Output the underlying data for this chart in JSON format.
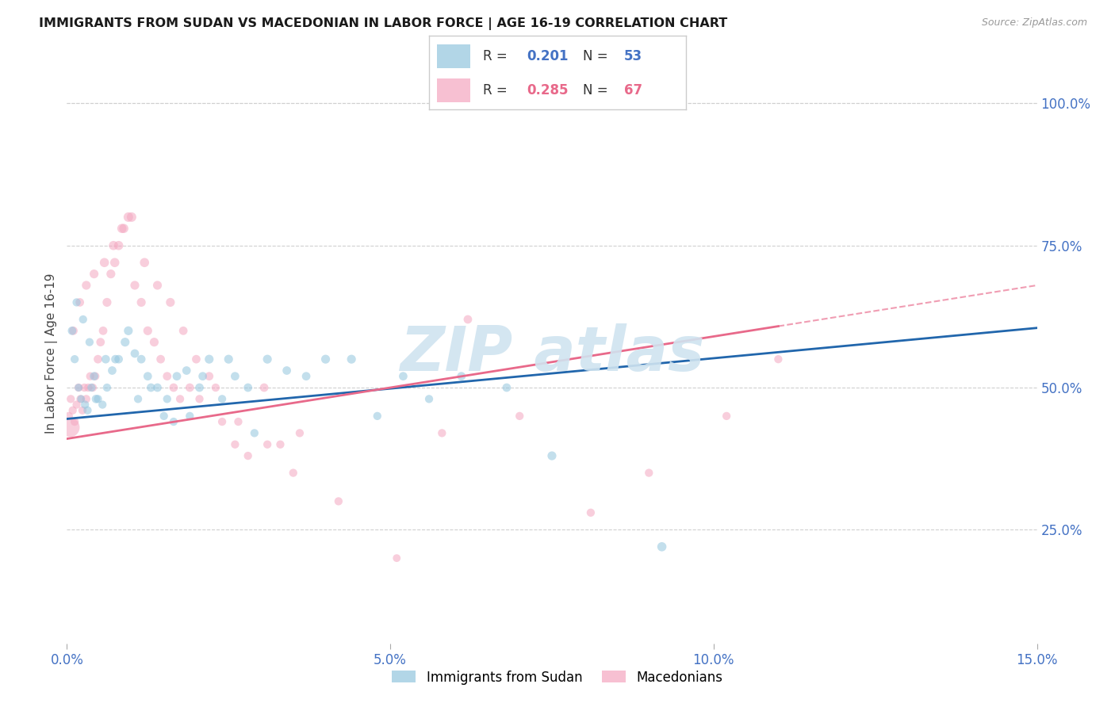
{
  "title": "IMMIGRANTS FROM SUDAN VS MACEDONIAN IN LABOR FORCE | AGE 16-19 CORRELATION CHART",
  "source": "Source: ZipAtlas.com",
  "ylabel": "In Labor Force | Age 16-19",
  "xlabel_vals": [
    0.0,
    5.0,
    10.0,
    15.0
  ],
  "ylabel_vals_right": [
    25.0,
    50.0,
    75.0,
    100.0
  ],
  "xlim": [
    0.0,
    15.0
  ],
  "ylim": [
    5.0,
    107.0
  ],
  "legend1_r": "0.201",
  "legend1_n": "53",
  "legend2_r": "0.285",
  "legend2_n": "67",
  "color_blue": "#92c5de",
  "color_pink": "#f4a6c0",
  "color_line_blue": "#2166ac",
  "color_line_pink": "#e8698a",
  "color_axis": "#4472c4",
  "color_watermark": "#d0e4f0",
  "sudan_line_x0": 0.0,
  "sudan_line_y0": 44.5,
  "sudan_line_x1": 15.0,
  "sudan_line_y1": 60.5,
  "macd_line_x0": 0.0,
  "macd_line_y0": 41.0,
  "macd_line_x1": 15.0,
  "macd_line_y1": 68.0,
  "macd_solid_end": 11.0,
  "sudan_x": [
    0.08,
    0.12,
    0.18,
    0.22,
    0.28,
    0.32,
    0.38,
    0.42,
    0.48,
    0.55,
    0.62,
    0.7,
    0.8,
    0.9,
    1.05,
    1.15,
    1.25,
    1.4,
    1.55,
    1.7,
    1.85,
    2.05,
    2.2,
    2.4,
    2.6,
    2.8,
    3.1,
    3.4,
    3.7,
    4.0,
    4.4,
    4.8,
    5.2,
    5.6,
    6.1,
    6.8,
    9.2,
    0.15,
    0.25,
    0.35,
    0.45,
    0.6,
    0.75,
    0.95,
    1.1,
    1.3,
    1.5,
    1.65,
    1.9,
    2.1,
    2.5,
    2.9,
    7.5
  ],
  "sudan_y": [
    60,
    55,
    50,
    48,
    47,
    46,
    50,
    52,
    48,
    47,
    50,
    53,
    55,
    58,
    56,
    55,
    52,
    50,
    48,
    52,
    53,
    50,
    55,
    48,
    52,
    50,
    55,
    53,
    52,
    55,
    55,
    45,
    52,
    48,
    52,
    50,
    22,
    65,
    62,
    58,
    48,
    55,
    55,
    60,
    48,
    50,
    45,
    44,
    45,
    52,
    55,
    42,
    38
  ],
  "sudan_size": [
    60,
    55,
    50,
    50,
    55,
    55,
    55,
    60,
    55,
    55,
    55,
    60,
    60,
    65,
    60,
    60,
    60,
    60,
    55,
    60,
    60,
    60,
    65,
    55,
    60,
    60,
    65,
    60,
    60,
    65,
    65,
    55,
    60,
    55,
    60,
    60,
    70,
    55,
    55,
    55,
    60,
    60,
    60,
    65,
    55,
    60,
    55,
    55,
    55,
    60,
    65,
    55,
    65
  ],
  "macd_x": [
    0.03,
    0.06,
    0.09,
    0.12,
    0.15,
    0.18,
    0.21,
    0.24,
    0.27,
    0.3,
    0.33,
    0.36,
    0.4,
    0.44,
    0.48,
    0.52,
    0.56,
    0.62,
    0.68,
    0.74,
    0.8,
    0.88,
    0.95,
    1.05,
    1.15,
    1.25,
    1.35,
    1.45,
    1.55,
    1.65,
    1.75,
    1.9,
    2.05,
    2.2,
    2.4,
    2.6,
    2.8,
    3.05,
    3.3,
    3.6,
    0.1,
    0.2,
    0.3,
    0.42,
    0.58,
    0.72,
    0.85,
    1.0,
    1.2,
    1.4,
    1.6,
    1.8,
    2.0,
    2.3,
    2.65,
    3.1,
    3.5,
    4.2,
    5.1,
    5.8,
    6.2,
    7.0,
    8.1,
    9.0,
    10.2,
    11.0,
    0.05
  ],
  "macd_y": [
    45,
    48,
    46,
    44,
    47,
    50,
    48,
    46,
    50,
    48,
    50,
    52,
    50,
    52,
    55,
    58,
    60,
    65,
    70,
    72,
    75,
    78,
    80,
    68,
    65,
    60,
    58,
    55,
    52,
    50,
    48,
    50,
    48,
    52,
    44,
    40,
    38,
    50,
    40,
    42,
    60,
    65,
    68,
    70,
    72,
    75,
    78,
    80,
    72,
    68,
    65,
    60,
    55,
    50,
    44,
    40,
    35,
    30,
    20,
    42,
    62,
    45,
    28,
    35,
    45,
    55,
    43
  ],
  "macd_size": [
    55,
    55,
    55,
    55,
    55,
    55,
    55,
    55,
    55,
    55,
    55,
    55,
    55,
    55,
    60,
    60,
    60,
    65,
    65,
    70,
    70,
    70,
    75,
    65,
    65,
    65,
    65,
    60,
    60,
    60,
    55,
    60,
    55,
    60,
    55,
    55,
    55,
    60,
    55,
    55,
    60,
    60,
    65,
    65,
    70,
    70,
    70,
    75,
    70,
    65,
    65,
    60,
    60,
    55,
    55,
    55,
    55,
    55,
    50,
    55,
    60,
    55,
    55,
    55,
    55,
    55,
    300
  ]
}
